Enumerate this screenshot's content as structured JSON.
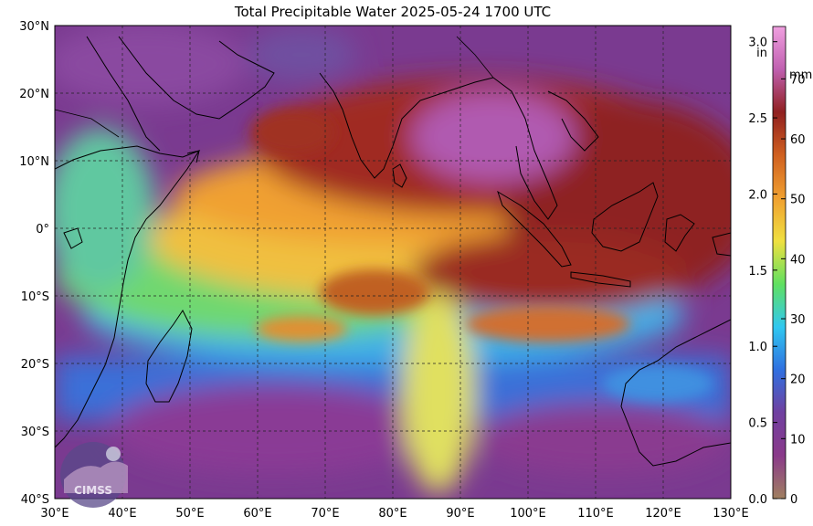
{
  "title": "Total Precipitable Water  2025-05-24 1700 UTC",
  "lat_labels": [
    "30°N",
    "20°N",
    "10°N",
    "0°",
    "10°S",
    "20°S",
    "30°S",
    "40°S"
  ],
  "lon_labels": [
    "30°E",
    "40°E",
    "50°E",
    "60°E",
    "70°E",
    "80°E",
    "90°E",
    "100°E",
    "110°E",
    "120°E",
    "130°E"
  ],
  "colorbar": {
    "unit_in": "in",
    "unit_mm": "mm",
    "in_ticks": [
      "0.0",
      "0.5",
      "1.0",
      "1.5",
      "2.0",
      "2.5",
      "3.0"
    ],
    "in_values": [
      0.0,
      0.5,
      1.0,
      1.5,
      2.0,
      2.5,
      3.0
    ],
    "mm_ticks": [
      "0",
      "10",
      "20",
      "30",
      "40",
      "50",
      "60",
      "70"
    ],
    "mm_values": [
      0,
      10,
      20,
      30,
      40,
      50,
      60,
      70
    ],
    "max_in": 3.1,
    "stops": [
      "#a08060",
      "#8a3a8a",
      "#7040a0",
      "#3070e0",
      "#30c8f0",
      "#60e060",
      "#f0e040",
      "#f0a030",
      "#d06020",
      "#902020",
      "#c060b0",
      "#f0a0e0"
    ]
  },
  "logo_text": "CIMSS",
  "colors": {
    "dry": "#7a3a90",
    "moist": "#8a1e1e",
    "coast": "#000000",
    "grid": "#333333"
  }
}
